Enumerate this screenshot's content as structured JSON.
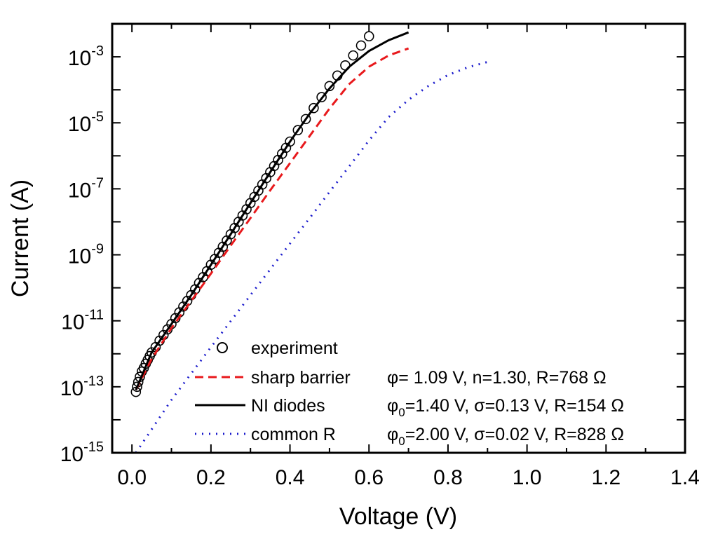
{
  "chart_data": {
    "type": "scatter",
    "xlabel": "Voltage (V)",
    "ylabel": "Current (A)",
    "xlim": [
      -0.05,
      1.4
    ],
    "ylim_log10": [
      -15,
      -2
    ],
    "yscale": "log",
    "x_ticks": [
      "0.0",
      "0.2",
      "0.4",
      "0.6",
      "0.8",
      "1.0",
      "1.2",
      "1.4"
    ],
    "y_ticks": [
      {
        "base": "10",
        "exp": "-3"
      },
      {
        "base": "10",
        "exp": "-5"
      },
      {
        "base": "10",
        "exp": "-7"
      },
      {
        "base": "10",
        "exp": "-9"
      },
      {
        "base": "10",
        "exp": "-11"
      },
      {
        "base": "10",
        "exp": "-13"
      },
      {
        "base": "10",
        "exp": "-15"
      }
    ],
    "legend_position": "bottom-right",
    "series": [
      {
        "name": "experiment",
        "style": "open-circle",
        "color": "#000000",
        "points": [
          [
            0.01,
            7e-14
          ],
          [
            0.013,
            1e-13
          ],
          [
            0.016,
            1.4e-13
          ],
          [
            0.02,
            2e-13
          ],
          [
            0.025,
            2.9e-13
          ],
          [
            0.03,
            3.7e-13
          ],
          [
            0.035,
            5e-13
          ],
          [
            0.04,
            6.5e-13
          ],
          [
            0.045,
            8.5e-13
          ],
          [
            0.05,
            1.1e-12
          ],
          [
            0.06,
            1.6e-12
          ],
          [
            0.07,
            2.5e-12
          ],
          [
            0.08,
            3.7e-12
          ],
          [
            0.09,
            5.5e-12
          ],
          [
            0.1,
            8e-12
          ],
          [
            0.11,
            1.2e-11
          ],
          [
            0.12,
            1.8e-11
          ],
          [
            0.13,
            2.7e-11
          ],
          [
            0.14,
            4e-11
          ],
          [
            0.15,
            6e-11
          ],
          [
            0.16,
            9e-11
          ],
          [
            0.17,
            1.4e-10
          ],
          [
            0.18,
            2.1e-10
          ],
          [
            0.19,
            3.2e-10
          ],
          [
            0.2,
            5e-10
          ],
          [
            0.21,
            7.5e-10
          ],
          [
            0.22,
            1.15e-09
          ],
          [
            0.23,
            1.75e-09
          ],
          [
            0.24,
            2.7e-09
          ],
          [
            0.25,
            4.2e-09
          ],
          [
            0.26,
            6.5e-09
          ],
          [
            0.27,
            1e-08
          ],
          [
            0.28,
            1.55e-08
          ],
          [
            0.29,
            2.4e-08
          ],
          [
            0.3,
            3.7e-08
          ],
          [
            0.31,
            5.7e-08
          ],
          [
            0.32,
            8.8e-08
          ],
          [
            0.33,
            1.35e-07
          ],
          [
            0.34,
            2.1e-07
          ],
          [
            0.35,
            3.2e-07
          ],
          [
            0.36,
            4.9e-07
          ],
          [
            0.37,
            7.5e-07
          ],
          [
            0.38,
            1.15e-06
          ],
          [
            0.39,
            1.75e-06
          ],
          [
            0.4,
            2.7e-06
          ],
          [
            0.42,
            6e-06
          ],
          [
            0.44,
            1.3e-05
          ],
          [
            0.46,
            2.8e-05
          ],
          [
            0.48,
            6e-05
          ],
          [
            0.5,
            0.00013
          ],
          [
            0.52,
            0.00027
          ],
          [
            0.54,
            0.00055
          ],
          [
            0.56,
            0.0011
          ],
          [
            0.58,
            0.0022
          ],
          [
            0.6,
            0.0042
          ]
        ]
      },
      {
        "name": "sharp barrier",
        "style": "dashed",
        "color": "#e8191c",
        "label": "φ= 1.09 V, n=1.30,    R=768 Ω",
        "points": [
          [
            0.01,
            8e-14
          ],
          [
            0.05,
            7e-13
          ],
          [
            0.1,
            6e-12
          ],
          [
            0.15,
            4e-11
          ],
          [
            0.2,
            2.7e-10
          ],
          [
            0.25,
            1.9e-09
          ],
          [
            0.3,
            1.3e-08
          ],
          [
            0.35,
            9e-08
          ],
          [
            0.4,
            6e-07
          ],
          [
            0.45,
            4e-06
          ],
          [
            0.5,
            2.7e-05
          ],
          [
            0.55,
            0.00015
          ],
          [
            0.6,
            0.0005
          ],
          [
            0.65,
            0.0011
          ],
          [
            0.7,
            0.0018
          ]
        ]
      },
      {
        "name": "NI diodes",
        "style": "solid",
        "color": "#000000",
        "label": "φ₀=1.40 V, σ=0.13 V, R=154 Ω",
        "points": [
          [
            0.01,
            8e-14
          ],
          [
            0.05,
            1.1e-12
          ],
          [
            0.1,
            8e-12
          ],
          [
            0.15,
            6e-11
          ],
          [
            0.2,
            5e-10
          ],
          [
            0.25,
            4.2e-09
          ],
          [
            0.3,
            3.7e-08
          ],
          [
            0.35,
            3.2e-07
          ],
          [
            0.4,
            2.7e-06
          ],
          [
            0.45,
            1.9e-05
          ],
          [
            0.5,
            0.00011
          ],
          [
            0.55,
            0.0005
          ],
          [
            0.6,
            0.0015
          ],
          [
            0.65,
            0.0032
          ],
          [
            0.7,
            0.0055
          ]
        ]
      },
      {
        "name": "common R",
        "style": "dotted",
        "color": "#1a1acc",
        "label": "φ₀=2.00 V, σ=0.02 V, R=828 Ω",
        "points": [
          [
            0.01,
            1e-15
          ],
          [
            0.1,
            4e-14
          ],
          [
            0.2,
            1.6e-12
          ],
          [
            0.3,
            6e-11
          ],
          [
            0.4,
            2.2e-09
          ],
          [
            0.45,
            1.3e-08
          ],
          [
            0.5,
            8e-08
          ],
          [
            0.55,
            4.8e-07
          ],
          [
            0.6,
            2.9e-06
          ],
          [
            0.65,
            1.5e-05
          ],
          [
            0.7,
            5e-05
          ],
          [
            0.75,
            0.00013
          ],
          [
            0.8,
            0.00028
          ],
          [
            0.85,
            0.00048
          ],
          [
            0.9,
            0.0007
          ]
        ]
      }
    ]
  },
  "legend": {
    "experiment": "experiment",
    "sharp_name": "sharp barrier",
    "sharp_params": "φ= 1.09 V, n=1.30,    R=768 Ω",
    "ni_name": "NI diodes",
    "ni_params_phi": "φ",
    "ni_params_sub": "0",
    "ni_params_rest": "=1.40 V, σ=0.13 V, R=154 Ω",
    "common_name": "common R",
    "common_params_phi": "φ",
    "common_params_sub": "0",
    "common_params_rest": "=2.00 V, σ=0.02 V, R=828 Ω"
  }
}
